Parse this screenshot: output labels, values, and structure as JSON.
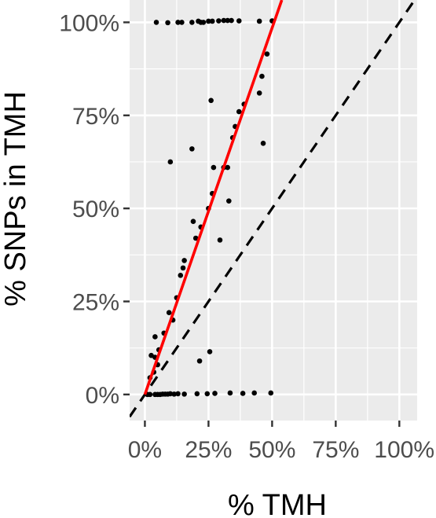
{
  "chart_data": {
    "type": "scatter",
    "xlabel": "% TMH",
    "ylabel": "% SNPs in TMH",
    "xlim": [
      -0.06,
      1.07
    ],
    "ylim": [
      -0.07,
      1.06
    ],
    "x_ticks": [
      0,
      0.25,
      0.5,
      0.75,
      1.0
    ],
    "x_tick_labels": [
      "0%",
      "25%",
      "50%",
      "75%",
      "100%"
    ],
    "y_ticks": [
      0,
      0.25,
      0.5,
      0.75,
      1.0
    ],
    "y_tick_labels": [
      "0%",
      "25%",
      "50%",
      "75%",
      "100%"
    ],
    "grid": true,
    "points": [
      {
        "x": 0.045,
        "y": 1.0
      },
      {
        "x": 0.09,
        "y": 0.999
      },
      {
        "x": 0.13,
        "y": 1.0
      },
      {
        "x": 0.145,
        "y": 1.0
      },
      {
        "x": 0.185,
        "y": 1.0
      },
      {
        "x": 0.21,
        "y": 1.003
      },
      {
        "x": 0.22,
        "y": 1.0
      },
      {
        "x": 0.23,
        "y": 1.0
      },
      {
        "x": 0.25,
        "y": 1.003
      },
      {
        "x": 0.265,
        "y": 1.003
      },
      {
        "x": 0.29,
        "y": 1.004
      },
      {
        "x": 0.31,
        "y": 1.005
      },
      {
        "x": 0.325,
        "y": 1.005
      },
      {
        "x": 0.34,
        "y": 1.005
      },
      {
        "x": 0.37,
        "y": 1.004
      },
      {
        "x": 0.45,
        "y": 1.003
      },
      {
        "x": 0.5,
        "y": 1.004
      },
      {
        "x": 0.01,
        "y": 0.0
      },
      {
        "x": 0.02,
        "y": 0.0
      },
      {
        "x": 0.04,
        "y": 0.0
      },
      {
        "x": 0.05,
        "y": 0.0
      },
      {
        "x": 0.06,
        "y": 0.0
      },
      {
        "x": 0.07,
        "y": 0.001
      },
      {
        "x": 0.08,
        "y": 0.001
      },
      {
        "x": 0.09,
        "y": 0.001
      },
      {
        "x": 0.1,
        "y": 0.002
      },
      {
        "x": 0.115,
        "y": 0.001
      },
      {
        "x": 0.13,
        "y": 0.002
      },
      {
        "x": 0.155,
        "y": 0.001
      },
      {
        "x": 0.205,
        "y": 0.002
      },
      {
        "x": 0.245,
        "y": 0.002
      },
      {
        "x": 0.275,
        "y": 0.003
      },
      {
        "x": 0.335,
        "y": 0.004
      },
      {
        "x": 0.385,
        "y": 0.003
      },
      {
        "x": 0.43,
        "y": 0.004
      },
      {
        "x": 0.495,
        "y": 0.004
      },
      {
        "x": 0.02,
        "y": 0.045
      },
      {
        "x": 0.025,
        "y": 0.105
      },
      {
        "x": 0.035,
        "y": 0.06
      },
      {
        "x": 0.04,
        "y": 0.1
      },
      {
        "x": 0.04,
        "y": 0.155
      },
      {
        "x": 0.05,
        "y": 0.08
      },
      {
        "x": 0.055,
        "y": 0.12
      },
      {
        "x": 0.075,
        "y": 0.165
      },
      {
        "x": 0.095,
        "y": 0.22
      },
      {
        "x": 0.11,
        "y": 0.2
      },
      {
        "x": 0.125,
        "y": 0.26
      },
      {
        "x": 0.14,
        "y": 0.32
      },
      {
        "x": 0.15,
        "y": 0.34
      },
      {
        "x": 0.155,
        "y": 0.36
      },
      {
        "x": 0.19,
        "y": 0.465
      },
      {
        "x": 0.2,
        "y": 0.42
      },
      {
        "x": 0.215,
        "y": 0.09
      },
      {
        "x": 0.22,
        "y": 0.45
      },
      {
        "x": 0.25,
        "y": 0.5
      },
      {
        "x": 0.255,
        "y": 0.115
      },
      {
        "x": 0.265,
        "y": 0.54
      },
      {
        "x": 0.27,
        "y": 0.61
      },
      {
        "x": 0.295,
        "y": 0.415
      },
      {
        "x": 0.31,
        "y": 0.61
      },
      {
        "x": 0.325,
        "y": 0.61
      },
      {
        "x": 0.33,
        "y": 0.52
      },
      {
        "x": 0.345,
        "y": 0.69
      },
      {
        "x": 0.355,
        "y": 0.72
      },
      {
        "x": 0.37,
        "y": 0.76
      },
      {
        "x": 0.39,
        "y": 0.78
      },
      {
        "x": 0.1,
        "y": 0.625
      },
      {
        "x": 0.185,
        "y": 0.66
      },
      {
        "x": 0.26,
        "y": 0.79
      },
      {
        "x": 0.45,
        "y": 0.81
      },
      {
        "x": 0.46,
        "y": 0.855
      },
      {
        "x": 0.48,
        "y": 0.915
      },
      {
        "x": 0.465,
        "y": 0.675
      }
    ],
    "fit_line": {
      "color": "#ff0000",
      "slope": 1.97,
      "intercept": 0.0
    },
    "reference_line": {
      "color": "#000000",
      "style": "dashed",
      "slope": 1.0,
      "intercept": 0.0
    },
    "panel_background": "#ebebeb",
    "grid_color": "#ffffff"
  }
}
